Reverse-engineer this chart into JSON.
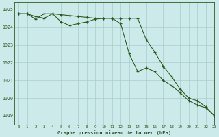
{
  "title": "Graphe pression niveau de la mer (hPa)",
  "bg_color": "#cceaea",
  "grid_color": "#aacccc",
  "line_color": "#2d5a1e",
  "xlim": [
    -0.5,
    23
  ],
  "ylim": [
    1018.5,
    1025.4
  ],
  "yticks": [
    1019,
    1020,
    1021,
    1022,
    1023,
    1024,
    1025
  ],
  "xticks": [
    0,
    1,
    2,
    3,
    4,
    5,
    6,
    7,
    8,
    9,
    10,
    11,
    12,
    13,
    14,
    15,
    16,
    17,
    18,
    19,
    20,
    21,
    22,
    23
  ],
  "series1_x": [
    0,
    1,
    2,
    3,
    4,
    5,
    6,
    7,
    8,
    9,
    10,
    11,
    12,
    13,
    14,
    15,
    16,
    17,
    18,
    19,
    20,
    21,
    22,
    23
  ],
  "series1_y": [
    1024.75,
    1024.75,
    1024.45,
    1024.75,
    1024.75,
    1024.3,
    1024.1,
    1024.2,
    1024.3,
    1024.45,
    1024.5,
    1024.5,
    1024.2,
    1022.5,
    1021.5,
    1021.7,
    1021.5,
    1021.0,
    1020.7,
    1020.3,
    1019.85,
    1019.6,
    1019.45,
    1019.0
  ],
  "series2_x": [
    0,
    1,
    2,
    3,
    4,
    5,
    6,
    7,
    8,
    9,
    10,
    11,
    12,
    13,
    14,
    15,
    16,
    17,
    18,
    19,
    20,
    21,
    22,
    23
  ],
  "series2_y": [
    1024.75,
    1024.75,
    1024.6,
    1024.5,
    1024.75,
    1024.7,
    1024.65,
    1024.6,
    1024.55,
    1024.5,
    1024.5,
    1024.5,
    1024.5,
    1024.5,
    1024.5,
    1023.3,
    1022.6,
    1021.8,
    1021.2,
    1020.5,
    1020.0,
    1019.85,
    1019.5,
    1019.0
  ]
}
